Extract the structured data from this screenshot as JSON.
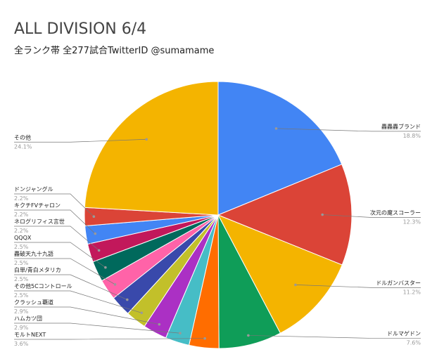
{
  "chart_data": {
    "type": "pie",
    "title": "ALL DIVISION 6/4",
    "subtitle": "全ランク帯 全277試合TwitterID @sumamame",
    "categories": [
      "轟轟轟ブランド",
      "次元の魔スコーラー",
      "ドルガンバスター",
      "ドルマゲドン",
      "モルトNEXT",
      "ハムカツ団",
      "クラッシュ覇道",
      "その他5Cコントロール",
      "白単/青白メタリカ",
      "轟破天九十九語",
      "QQQX",
      "ネログリフィス言世",
      "キクチFVチャロン",
      "ドンジャングル",
      "その他"
    ],
    "values": [
      18.8,
      12.3,
      11.2,
      7.6,
      3.6,
      2.9,
      2.9,
      2.5,
      2.5,
      2.5,
      2.5,
      2.2,
      2.2,
      2.2,
      24.1
    ],
    "value_labels": [
      "18.8%",
      "12.3%",
      "11.2%",
      "7.6%",
      "3.6%",
      "2.9%",
      "2.9%",
      "2.5%",
      "2.5%",
      "2.5%",
      "2.5%",
      "2.2%",
      "2.2%",
      "2.2%",
      "24.1%"
    ],
    "colors": [
      "#4285f4",
      "#db4437",
      "#f4b400",
      "#0f9d58",
      "#ff6d00",
      "#46bdc6",
      "#ab30c4",
      "#c2c02a",
      "#3949ab",
      "#ff63a8",
      "#00695c",
      "#c2185b",
      "#4285f4",
      "#db4437",
      "#f4b400"
    ]
  }
}
